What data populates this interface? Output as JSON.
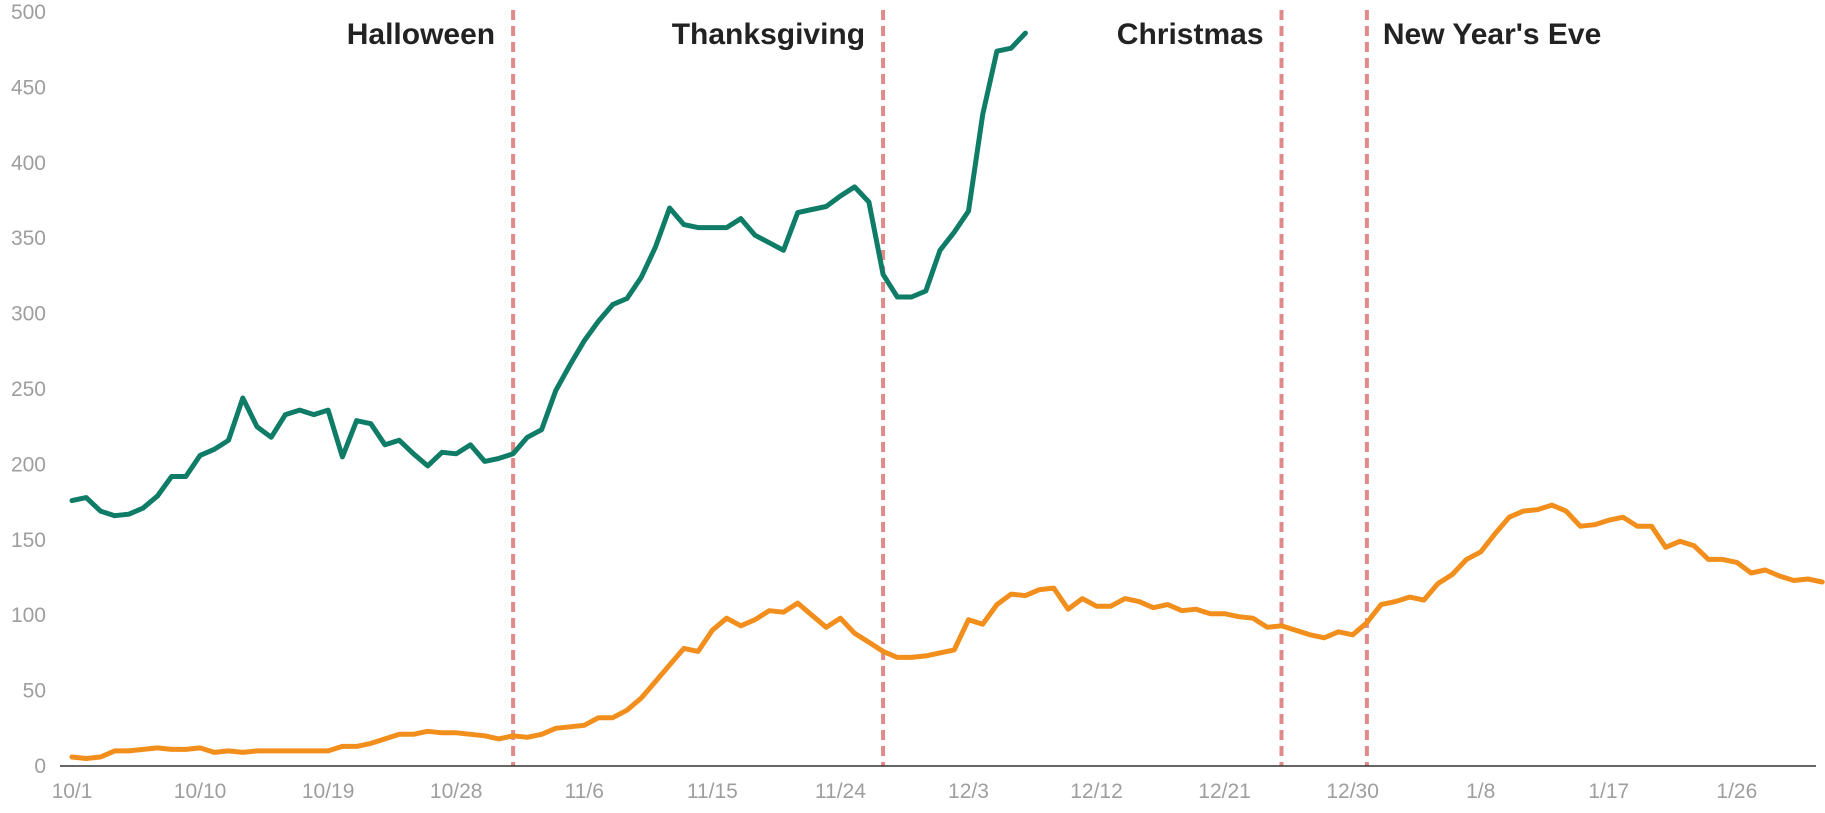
{
  "chart_data": {
    "type": "line",
    "title": "",
    "xlabel": "",
    "ylabel": "",
    "x_range": [
      "2020-10-01",
      "2021-01-31"
    ],
    "ylim": [
      0,
      500
    ],
    "y_ticks": [
      0,
      50,
      100,
      150,
      200,
      250,
      300,
      350,
      400,
      450,
      500
    ],
    "x_ticks": [
      {
        "label": "10/1",
        "day": 0
      },
      {
        "label": "10/10",
        "day": 9
      },
      {
        "label": "10/19",
        "day": 18
      },
      {
        "label": "10/28",
        "day": 27
      },
      {
        "label": "11/6",
        "day": 36
      },
      {
        "label": "11/15",
        "day": 45
      },
      {
        "label": "11/24",
        "day": 54
      },
      {
        "label": "12/3",
        "day": 63
      },
      {
        "label": "12/12",
        "day": 72
      },
      {
        "label": "12/21",
        "day": 81
      },
      {
        "label": "12/30",
        "day": 90
      },
      {
        "label": "1/8",
        "day": 99
      },
      {
        "label": "1/17",
        "day": 108
      },
      {
        "label": "1/26",
        "day": 117
      }
    ],
    "grid": false,
    "legend": "none",
    "events": [
      {
        "label": "Halloween",
        "day": 31,
        "label_side": "left"
      },
      {
        "label": "Thanksgiving",
        "day": 57,
        "label_side": "left"
      },
      {
        "label": "Christmas",
        "day": 85,
        "label_side": "left"
      },
      {
        "label": "New Year's Eve",
        "day": 91,
        "label_side": "right"
      }
    ],
    "series": [
      {
        "color": "#0e7c66",
        "points": [
          [
            0,
            176
          ],
          [
            1,
            178
          ],
          [
            2,
            169
          ],
          [
            3,
            166
          ],
          [
            4,
            167
          ],
          [
            5,
            171
          ],
          [
            6,
            179
          ],
          [
            7,
            192
          ],
          [
            8,
            192
          ],
          [
            9,
            206
          ],
          [
            10,
            210
          ],
          [
            11,
            216
          ],
          [
            12,
            244
          ],
          [
            13,
            225
          ],
          [
            14,
            218
          ],
          [
            15,
            233
          ],
          [
            16,
            236
          ],
          [
            17,
            233
          ],
          [
            18,
            236
          ],
          [
            19,
            205
          ],
          [
            20,
            229
          ],
          [
            21,
            227
          ],
          [
            22,
            213
          ],
          [
            23,
            216
          ],
          [
            24,
            207
          ],
          [
            25,
            199
          ],
          [
            26,
            208
          ],
          [
            27,
            207
          ],
          [
            28,
            213
          ],
          [
            29,
            202
          ],
          [
            30,
            204
          ],
          [
            31,
            207
          ],
          [
            32,
            218
          ],
          [
            33,
            223
          ],
          [
            34,
            249
          ],
          [
            35,
            266
          ],
          [
            36,
            282
          ],
          [
            37,
            295
          ],
          [
            38,
            306
          ],
          [
            39,
            310
          ],
          [
            40,
            324
          ],
          [
            41,
            344
          ],
          [
            42,
            370
          ],
          [
            43,
            359
          ],
          [
            44,
            357
          ],
          [
            45,
            357
          ],
          [
            46,
            357
          ],
          [
            47,
            363
          ],
          [
            48,
            352
          ],
          [
            49,
            347
          ],
          [
            50,
            342
          ],
          [
            51,
            367
          ],
          [
            52,
            369
          ],
          [
            53,
            371
          ],
          [
            54,
            378
          ],
          [
            55,
            384
          ],
          [
            56,
            374
          ],
          [
            57,
            326
          ],
          [
            58,
            311
          ],
          [
            59,
            311
          ],
          [
            60,
            315
          ],
          [
            61,
            342
          ],
          [
            62,
            354
          ],
          [
            63,
            368
          ],
          [
            64,
            432
          ],
          [
            65,
            474
          ],
          [
            66,
            476
          ],
          [
            67,
            486
          ]
        ]
      },
      {
        "color": "#f28e1c",
        "points": [
          [
            0,
            6
          ],
          [
            1,
            5
          ],
          [
            2,
            6
          ],
          [
            3,
            10
          ],
          [
            4,
            10
          ],
          [
            5,
            11
          ],
          [
            6,
            12
          ],
          [
            7,
            11
          ],
          [
            8,
            11
          ],
          [
            9,
            12
          ],
          [
            10,
            9
          ],
          [
            11,
            10
          ],
          [
            12,
            9
          ],
          [
            13,
            10
          ],
          [
            14,
            10
          ],
          [
            15,
            10
          ],
          [
            16,
            10
          ],
          [
            17,
            10
          ],
          [
            18,
            10
          ],
          [
            19,
            13
          ],
          [
            20,
            13
          ],
          [
            21,
            15
          ],
          [
            22,
            18
          ],
          [
            23,
            21
          ],
          [
            24,
            21
          ],
          [
            25,
            23
          ],
          [
            26,
            22
          ],
          [
            27,
            22
          ],
          [
            28,
            21
          ],
          [
            29,
            20
          ],
          [
            30,
            18
          ],
          [
            31,
            20
          ],
          [
            32,
            19
          ],
          [
            33,
            21
          ],
          [
            34,
            25
          ],
          [
            35,
            26
          ],
          [
            36,
            27
          ],
          [
            37,
            32
          ],
          [
            38,
            32
          ],
          [
            39,
            37
          ],
          [
            40,
            45
          ],
          [
            41,
            56
          ],
          [
            42,
            67
          ],
          [
            43,
            78
          ],
          [
            44,
            76
          ],
          [
            45,
            90
          ],
          [
            46,
            98
          ],
          [
            47,
            93
          ],
          [
            48,
            97
          ],
          [
            49,
            103
          ],
          [
            50,
            102
          ],
          [
            51,
            108
          ],
          [
            52,
            100
          ],
          [
            53,
            92
          ],
          [
            54,
            98
          ],
          [
            55,
            88
          ],
          [
            56,
            82
          ],
          [
            57,
            76
          ],
          [
            58,
            72
          ],
          [
            59,
            72
          ],
          [
            60,
            73
          ],
          [
            61,
            75
          ],
          [
            62,
            77
          ],
          [
            63,
            97
          ],
          [
            64,
            94
          ],
          [
            65,
            107
          ],
          [
            66,
            114
          ],
          [
            67,
            113
          ],
          [
            68,
            117
          ],
          [
            69,
            118
          ],
          [
            70,
            104
          ],
          [
            71,
            111
          ],
          [
            72,
            106
          ],
          [
            73,
            106
          ],
          [
            74,
            111
          ],
          [
            75,
            109
          ],
          [
            76,
            105
          ],
          [
            77,
            107
          ],
          [
            78,
            103
          ],
          [
            79,
            104
          ],
          [
            80,
            101
          ],
          [
            81,
            101
          ],
          [
            82,
            99
          ],
          [
            83,
            98
          ],
          [
            84,
            92
          ],
          [
            85,
            93
          ],
          [
            86,
            90
          ],
          [
            87,
            87
          ],
          [
            88,
            85
          ],
          [
            89,
            89
          ],
          [
            90,
            87
          ],
          [
            91,
            95
          ],
          [
            92,
            107
          ],
          [
            93,
            109
          ],
          [
            94,
            112
          ],
          [
            95,
            110
          ],
          [
            96,
            121
          ],
          [
            97,
            127
          ],
          [
            98,
            137
          ],
          [
            99,
            142
          ],
          [
            100,
            154
          ],
          [
            101,
            165
          ],
          [
            102,
            169
          ],
          [
            103,
            170
          ],
          [
            104,
            173
          ],
          [
            105,
            169
          ],
          [
            106,
            159
          ],
          [
            107,
            160
          ],
          [
            108,
            163
          ],
          [
            109,
            165
          ],
          [
            110,
            159
          ],
          [
            111,
            159
          ],
          [
            112,
            145
          ],
          [
            113,
            149
          ],
          [
            114,
            146
          ],
          [
            115,
            137
          ],
          [
            116,
            137
          ],
          [
            117,
            135
          ],
          [
            118,
            128
          ],
          [
            119,
            130
          ],
          [
            120,
            126
          ],
          [
            121,
            123
          ],
          [
            122,
            124
          ],
          [
            123,
            122
          ]
        ]
      }
    ]
  }
}
